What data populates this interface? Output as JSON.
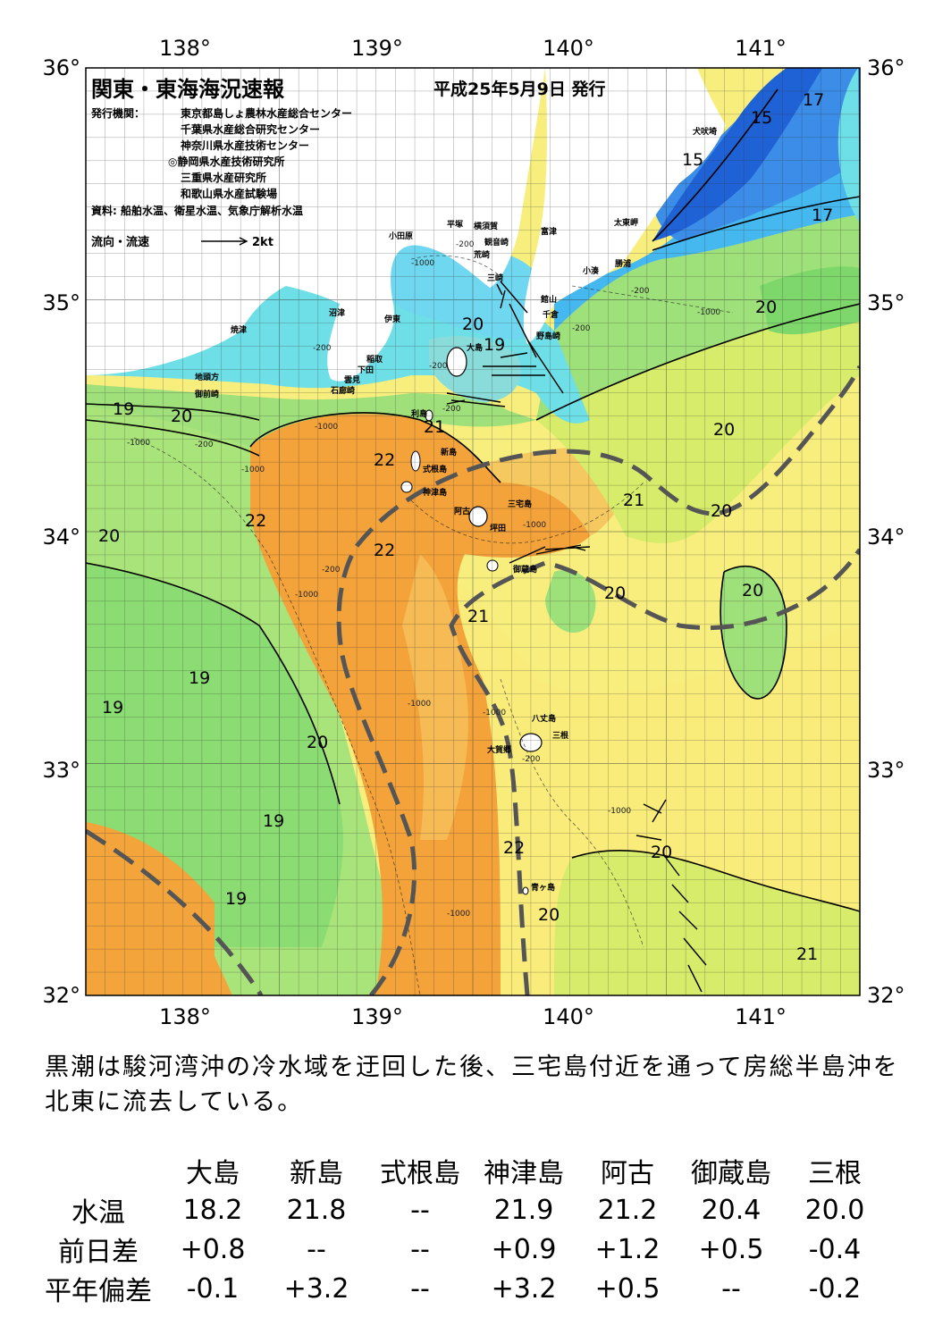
{
  "header": {
    "title": "関東・東海海況速報",
    "date": "平成25年5月9日 発行",
    "issuer_label": "発行機関：",
    "issuers": [
      "東京都島しょ農林水産総合センター",
      "千葉県水産総合研究センター",
      "神奈川県水産技術センター",
      "◎静岡県水産技術研究所",
      "三重県水産研究所",
      "和歌山県水産試験場"
    ],
    "source": "資料: 船舶水温、衛星水温、気象庁解析水温",
    "flow_legend_label": "流向・流速",
    "flow_legend_unit": "2kt"
  },
  "axes": {
    "lon_labels": [
      "138°",
      "139°",
      "140°",
      "141°"
    ],
    "lat_labels": [
      "36°",
      "35°",
      "34°",
      "33°",
      "32°"
    ]
  },
  "place_names": [
    {
      "key": "inubozaki",
      "text": "犬吠埼"
    },
    {
      "key": "taitomisaki",
      "text": "太東岬"
    },
    {
      "key": "katsuura",
      "text": "勝浦"
    },
    {
      "key": "kominato",
      "text": "小湊"
    },
    {
      "key": "futtsu",
      "text": "富津"
    },
    {
      "key": "kannonzaki",
      "text": "観音崎"
    },
    {
      "key": "yokosuka",
      "text": "横須賀"
    },
    {
      "key": "hiratsuka",
      "text": "平塚"
    },
    {
      "key": "odawara",
      "text": "小田原"
    },
    {
      "key": "arasaki",
      "text": "荒崎"
    },
    {
      "key": "misaki",
      "text": "三崎"
    },
    {
      "key": "tateyama",
      "text": "館山"
    },
    {
      "key": "chikura",
      "text": "千倉"
    },
    {
      "key": "nojimazaki",
      "text": "野島崎"
    },
    {
      "key": "numazu",
      "text": "沼津"
    },
    {
      "key": "ito",
      "text": "伊東"
    },
    {
      "key": "yaizu",
      "text": "焼津"
    },
    {
      "key": "inatori",
      "text": "稲取"
    },
    {
      "key": "shimoda",
      "text": "下田"
    },
    {
      "key": "kumomi",
      "text": "雲見"
    },
    {
      "key": "irozaki",
      "text": "石廊崎"
    },
    {
      "key": "jitogata",
      "text": "地頭方"
    },
    {
      "key": "omaezaki",
      "text": "御前崎"
    },
    {
      "key": "oshima",
      "text": "大島"
    },
    {
      "key": "toshima",
      "text": "利島"
    },
    {
      "key": "niijima",
      "text": "新島"
    },
    {
      "key": "shikinejima",
      "text": "式根島"
    },
    {
      "key": "kozushima",
      "text": "神津島"
    },
    {
      "key": "miyakejima",
      "text": "三宅島"
    },
    {
      "key": "ako",
      "text": "阿古"
    },
    {
      "key": "tsubota",
      "text": "坪田"
    },
    {
      "key": "mikurajima",
      "text": "御蔵島"
    },
    {
      "key": "hachijojima",
      "text": "八丈島"
    },
    {
      "key": "mitsune",
      "text": "三根"
    },
    {
      "key": "okago",
      "text": "大賀郷"
    },
    {
      "key": "aogashima",
      "text": "青ヶ島"
    }
  ],
  "temperature_labels": [
    "15",
    "15",
    "17",
    "17",
    "19",
    "19",
    "19",
    "19",
    "19",
    "19",
    "20",
    "20",
    "20",
    "20",
    "20",
    "20",
    "20",
    "20",
    "20",
    "20",
    "20",
    "21",
    "21",
    "21",
    "21",
    "22",
    "22",
    "22",
    "22"
  ],
  "depth_labels": [
    "-200",
    "-1000",
    "-200",
    "-200",
    "-1000",
    "-200",
    "-1000",
    "-200",
    "-1000",
    "-1000",
    "-200",
    "-1000",
    "-1000",
    "-1000",
    "-200",
    "-1000",
    "-1000",
    "-200",
    "-200",
    "-1000"
  ],
  "summary": "黒潮は駿河湾沖の冷水域を迂回した後、三宅島付近を通って房総半島沖を北東に流去している。",
  "stats_table": {
    "stations": [
      "大島",
      "新島",
      "式根島",
      "神津島",
      "阿古",
      "御蔵島",
      "三根"
    ],
    "rows": [
      {
        "label": "水温",
        "values": [
          "18.2",
          "21.8",
          "--",
          "21.9",
          "21.2",
          "20.4",
          "20.0"
        ]
      },
      {
        "label": "前日差",
        "values": [
          "+0.8",
          "--",
          "--",
          "+0.9",
          "+1.2",
          "+0.5",
          "-0.4"
        ]
      },
      {
        "label": "平年偏差",
        "values": [
          "-0.1",
          "+3.2",
          "--",
          "+3.2",
          "+0.5",
          "--",
          "-0.2"
        ]
      }
    ]
  },
  "colors": {
    "temp_15": "#1a5fd8",
    "temp_16": "#3a8ef0",
    "temp_17": "#45b8f0",
    "temp_18": "#6ee0f0",
    "temp_19": "#9de07a",
    "temp_19_5": "#7ed76b",
    "temp_20": "#d8f06a",
    "temp_20_5": "#f7f07a",
    "temp_21": "#f8df70",
    "temp_21_5": "#f6c05c",
    "temp_22": "#f3a53c",
    "land": "#ffffff",
    "kuroshio_axis": "#555555"
  }
}
